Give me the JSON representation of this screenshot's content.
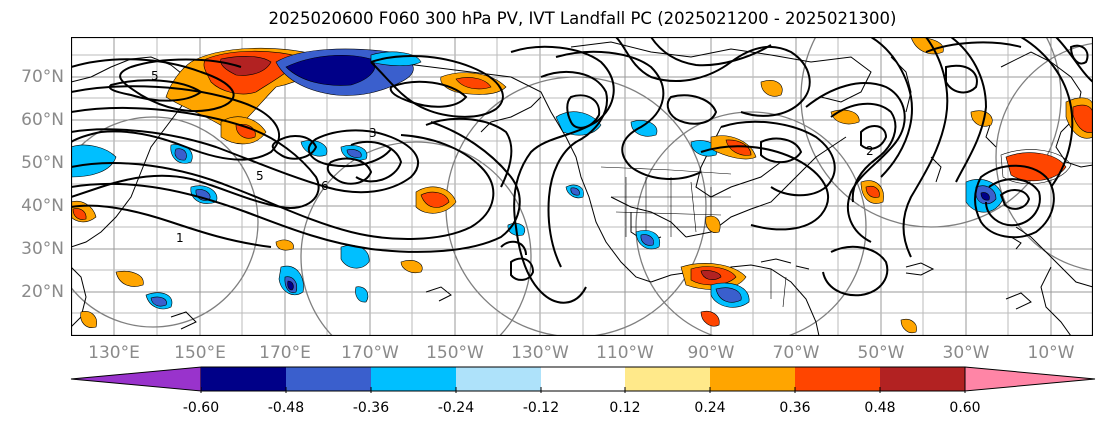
{
  "title": "2025020600 F060 300 hPa PV, IVT Landfall PC (2025021200 - 2025021300)",
  "lat_labels": [
    "70°N",
    "60°N",
    "50°N",
    "40°N",
    "30°N",
    "20°N"
  ],
  "lon_labels": [
    "130°E",
    "150°E",
    "170°E",
    "170°W",
    "150°W",
    "130°W",
    "110°W",
    "90°W",
    "70°W",
    "50°W",
    "30°W",
    "10°W"
  ],
  "contour_labels": [
    "5",
    "3",
    "5",
    "6",
    "1",
    "2"
  ],
  "colorbar": {
    "tick_labels": [
      "-0.60",
      "-0.48",
      "-0.36",
      "-0.24",
      "-0.12",
      "0.12",
      "0.24",
      "0.36",
      "0.48",
      "0.60"
    ],
    "colors": [
      "#9933cc",
      "#000088",
      "#3a5fcd",
      "#00bfff",
      "#aee2fa",
      "#ffffff",
      "#ffe98a",
      "#ffa500",
      "#ff4500",
      "#b22222",
      "#ff85a6"
    ]
  }
}
